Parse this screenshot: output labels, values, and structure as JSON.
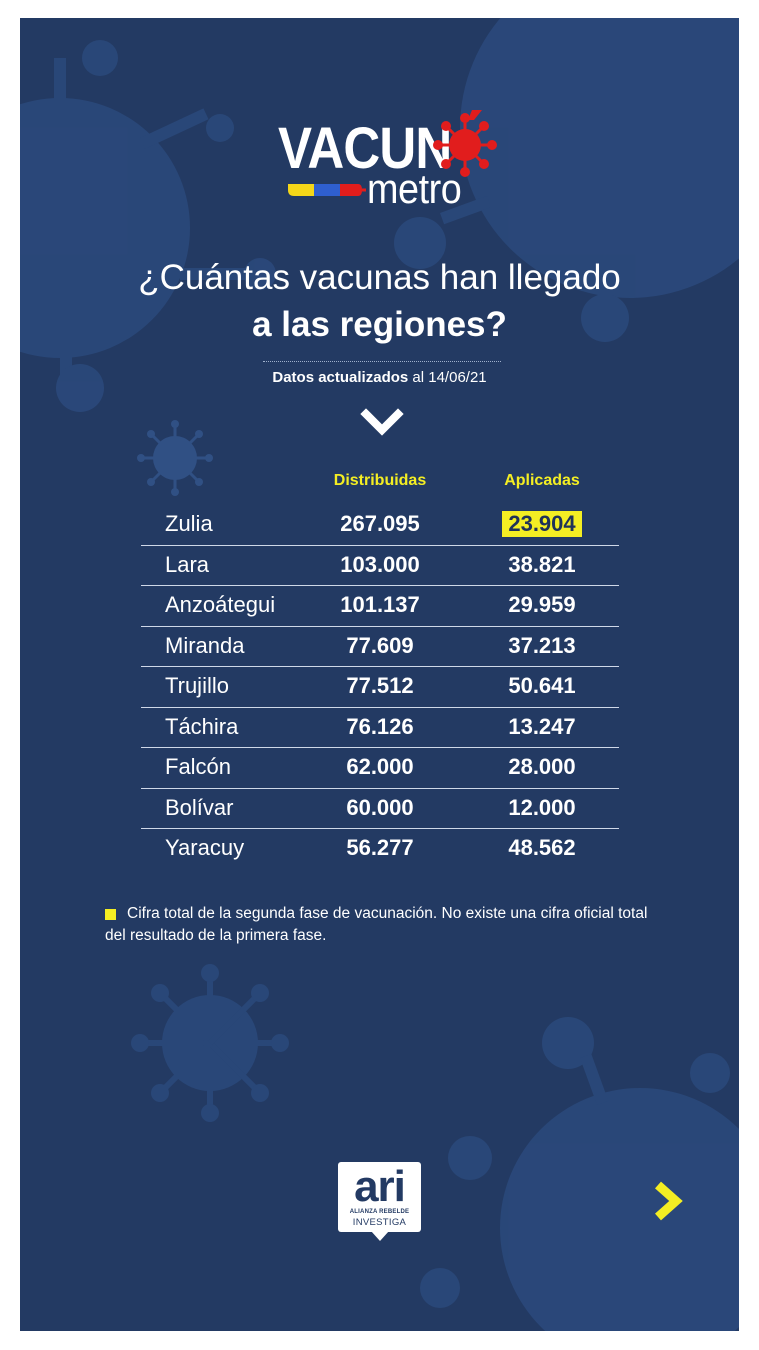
{
  "logo": {
    "word_top": "VACUN",
    "word_bottom": "metro",
    "virus_icon": "virus-icon",
    "colors": {
      "yellow": "#f4d619",
      "blue": "#2f5fcf",
      "red": "#e11d1d"
    }
  },
  "headline": {
    "line1": "¿Cuántas vacunas han llegado",
    "line2": "a las regiones?"
  },
  "updated": {
    "bold": "Datos actualizados",
    "rest": " al 14/06/21"
  },
  "columns": {
    "distributed": "Distribuidas",
    "applied": "Aplicadas"
  },
  "rows": [
    {
      "region": "Zulia",
      "distributed": "267.095",
      "applied": "23.904"
    },
    {
      "region": "Lara",
      "distributed": "103.000",
      "applied": "38.821"
    },
    {
      "region": "Anzoátegui",
      "distributed": "101.137",
      "applied": "29.959"
    },
    {
      "region": "Miranda",
      "distributed": "77.609",
      "applied": "37.213"
    },
    {
      "region": "Trujillo",
      "distributed": "77.512",
      "applied": "50.641"
    },
    {
      "region": "Táchira",
      "distributed": "76.126",
      "applied": "13.247"
    },
    {
      "region": "Falcón",
      "distributed": "62.000",
      "applied": "28.000"
    },
    {
      "region": "Bolívar",
      "distributed": "60.000",
      "applied": "12.000"
    },
    {
      "region": "Yaracuy",
      "distributed": "56.277",
      "applied": "48.562"
    }
  ],
  "footnote": {
    "line1": "Cifra total de la segunda fase de vacunación. No existe una cifra oficial total",
    "line2": "del resultado de la primera fase."
  },
  "brand": {
    "word": "ari",
    "sub1": "ALIANZA REBELDE",
    "sub2": "INVESTIGA"
  },
  "colors": {
    "background": "#233a63",
    "accent": "#f4ee23"
  }
}
